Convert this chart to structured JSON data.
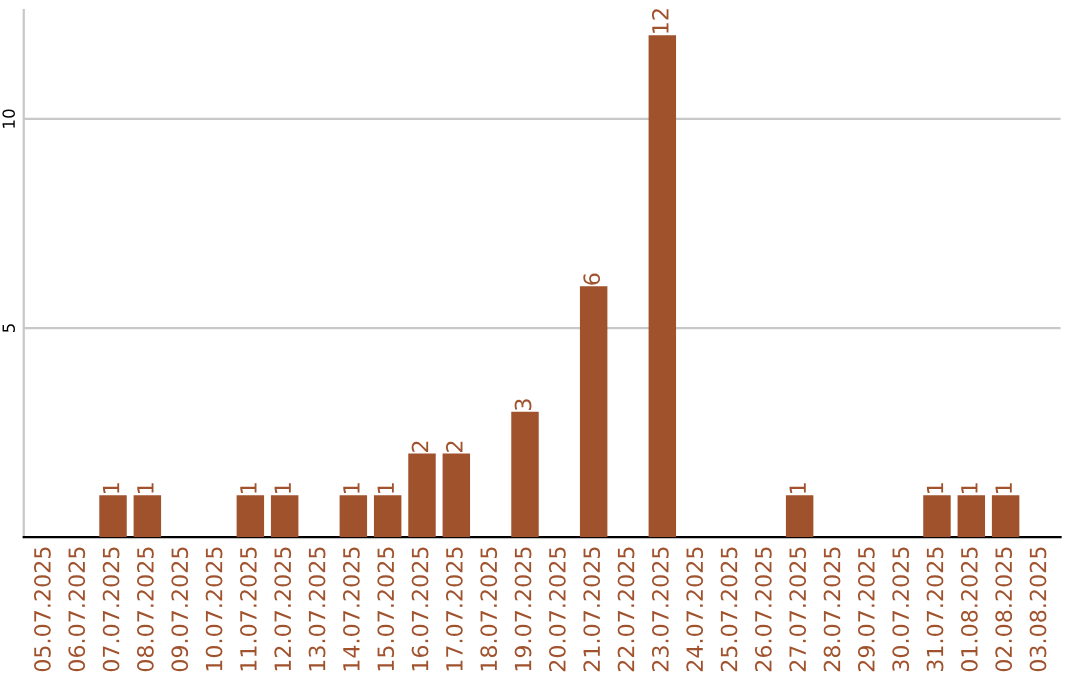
{
  "chart_data": {
    "type": "bar",
    "categories": [
      "05.07.2025",
      "06.07.2025",
      "07.07.2025",
      "08.07.2025",
      "09.07.2025",
      "10.07.2025",
      "11.07.2025",
      "12.07.2025",
      "13.07.2025",
      "14.07.2025",
      "15.07.2025",
      "16.07.2025",
      "17.07.2025",
      "18.07.2025",
      "19.07.2025",
      "20.07.2025",
      "21.07.2025",
      "22.07.2025",
      "23.07.2025",
      "24.07.2025",
      "25.07.2025",
      "26.07.2025",
      "27.07.2025",
      "28.07.2025",
      "29.07.2025",
      "30.07.2025",
      "31.07.2025",
      "01.08.2025",
      "02.08.2025",
      "03.08.2025"
    ],
    "values": [
      0,
      0,
      1,
      1,
      0,
      0,
      1,
      1,
      0,
      1,
      1,
      2,
      2,
      0,
      3,
      0,
      6,
      0,
      12,
      0,
      0,
      0,
      1,
      0,
      0,
      0,
      1,
      1,
      1,
      0
    ],
    "value_labels": [
      null,
      null,
      "1",
      "1",
      null,
      null,
      "1",
      "1",
      null,
      "1",
      "1",
      "2",
      "2",
      null,
      "3",
      null,
      "6",
      null,
      "12",
      null,
      null,
      null,
      "1",
      null,
      null,
      null,
      "1",
      "1",
      "1",
      null
    ],
    "color": "#a0522d",
    "ylim": [
      0,
      12.6
    ],
    "yticks": [
      5,
      10
    ],
    "grid": "y"
  }
}
